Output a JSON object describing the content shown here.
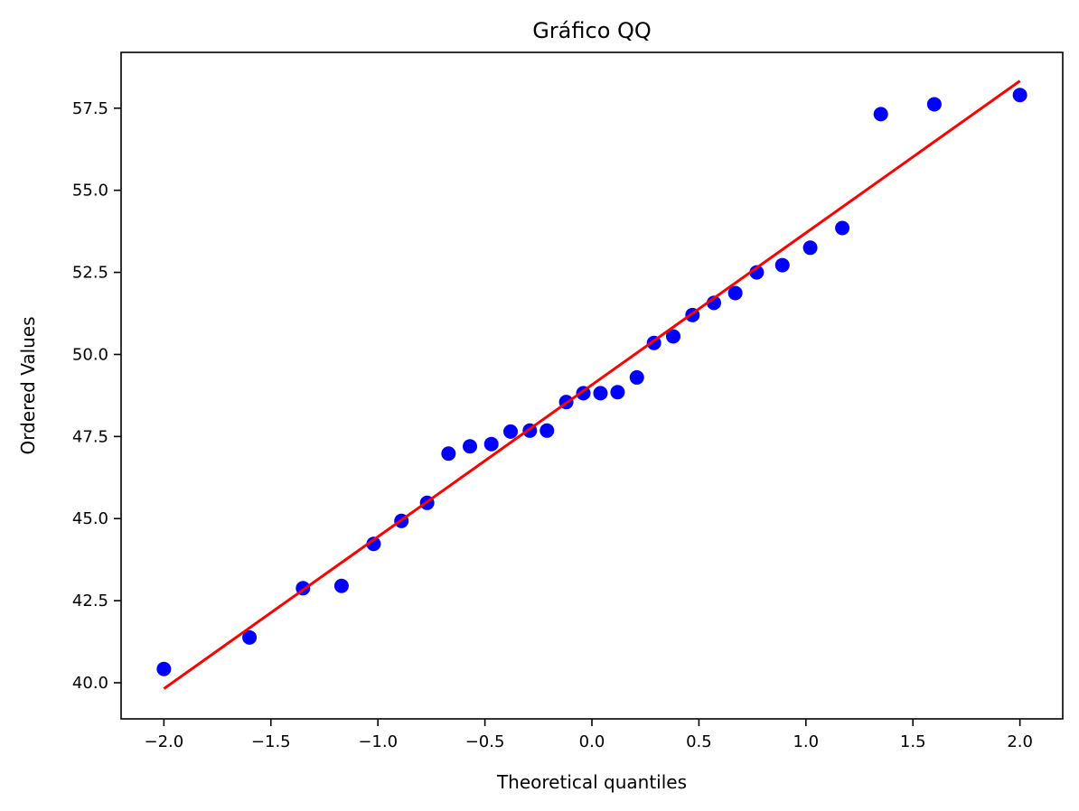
{
  "chart_data": {
    "type": "scatter",
    "title": "Gráfico QQ",
    "xlabel": "Theoretical quantiles",
    "ylabel": "Ordered Values",
    "xlim": [
      -2.2,
      2.2
    ],
    "ylim": [
      38.9,
      59.2
    ],
    "x_ticks": [
      -2.0,
      -1.5,
      -1.0,
      -0.5,
      0.0,
      0.5,
      1.0,
      1.5,
      2.0
    ],
    "x_tick_labels": [
      "−2.0",
      "−1.5",
      "−1.0",
      "−0.5",
      "0.0",
      "0.5",
      "1.0",
      "1.5",
      "2.0"
    ],
    "y_ticks": [
      40.0,
      42.5,
      45.0,
      47.5,
      50.0,
      52.5,
      55.0,
      57.5
    ],
    "y_tick_labels": [
      "40.0",
      "42.5",
      "45.0",
      "47.5",
      "50.0",
      "52.5",
      "55.0",
      "57.5"
    ],
    "grid": false,
    "colors": {
      "points": "#0000ff",
      "fit_line": "#ff0000",
      "axes": "#000000"
    },
    "series": [
      {
        "kind": "points",
        "x": [
          -2.0,
          -1.6,
          -1.35,
          -1.17,
          -1.02,
          -0.89,
          -0.77,
          -0.67,
          -0.57,
          -0.47,
          -0.38,
          -0.29,
          -0.21,
          -0.12,
          -0.04,
          0.04,
          0.12,
          0.21,
          0.29,
          0.38,
          0.47,
          0.57,
          0.67,
          0.77,
          0.89,
          1.02,
          1.17,
          1.35,
          1.6,
          2.0
        ],
        "y": [
          40.42,
          41.38,
          42.88,
          42.95,
          44.23,
          44.93,
          45.48,
          46.98,
          47.2,
          47.27,
          47.65,
          47.68,
          47.68,
          48.55,
          48.82,
          48.82,
          48.85,
          49.3,
          50.35,
          50.55,
          51.2,
          51.57,
          51.87,
          52.5,
          52.72,
          53.25,
          53.85,
          57.32,
          57.62,
          57.9
        ]
      },
      {
        "kind": "fit-line",
        "x": [
          -2.0,
          2.0
        ],
        "y": [
          39.82,
          58.33
        ]
      }
    ]
  }
}
